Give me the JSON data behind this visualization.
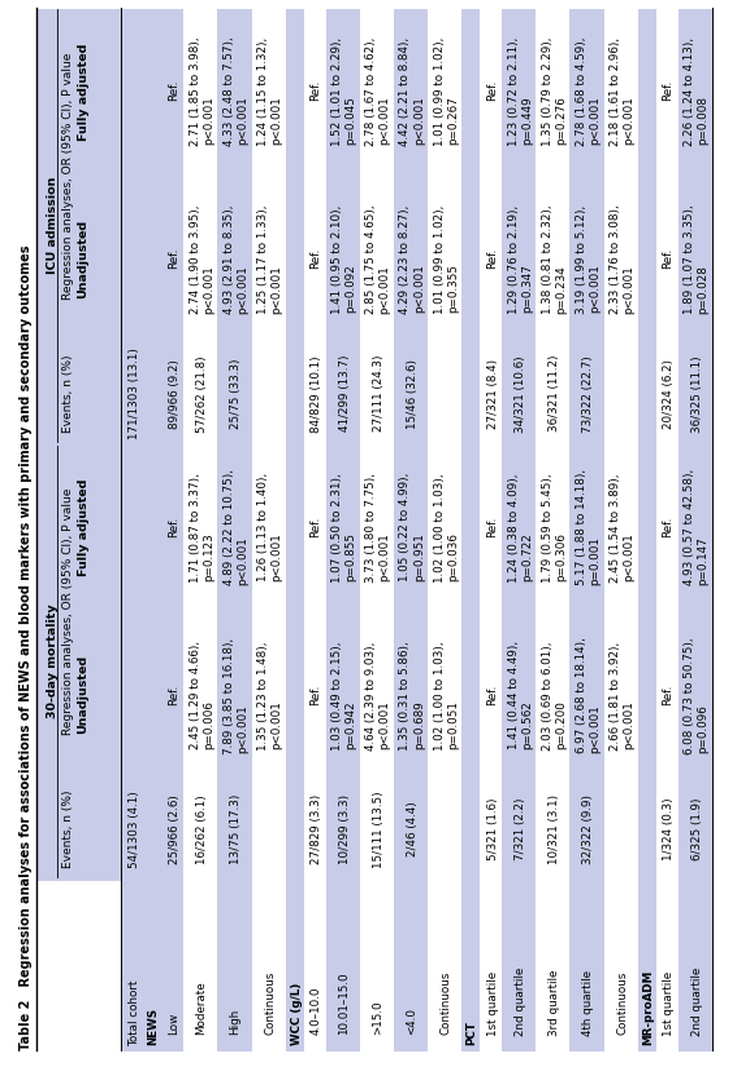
{
  "title": "Table 2   Regression analyses for associations of NEWS and blood markers with primary and secondary outcomes",
  "bg_stripe": "#c8cce8",
  "white": "#ffffff",
  "text_color": "#000000",
  "rows": [
    {
      "label": "Total cohort",
      "indent": 0,
      "bold": false,
      "is_section": false,
      "mort_events": "54/1303 (4.1)",
      "mort_unadj": "",
      "mort_adj": "",
      "icu_events": "171/1303 (13.1)",
      "icu_unadj": "",
      "icu_adj": ""
    },
    {
      "label": "NEWS",
      "indent": 0,
      "bold": true,
      "is_section": true,
      "mort_events": "",
      "mort_unadj": "",
      "mort_adj": "",
      "icu_events": "",
      "icu_unadj": "",
      "icu_adj": ""
    },
    {
      "label": "Low",
      "indent": 1,
      "bold": false,
      "is_section": false,
      "mort_events": "25/966 (2.6)",
      "mort_unadj": "Ref.",
      "mort_adj": "Ref.",
      "icu_events": "89/966 (9.2)",
      "icu_unadj": "Ref.",
      "icu_adj": "Ref."
    },
    {
      "label": "Moderate",
      "indent": 1,
      "bold": false,
      "is_section": false,
      "mort_events": "16/262 (6.1)",
      "mort_unadj": "2.45 (1.29 to 4.66),\np=0.006",
      "mort_adj": "1.71 (0.87 to 3.37),\np=0.123",
      "icu_events": "57/262 (21.8)",
      "icu_unadj": "2.74 (1.90 to 3.95),\np<0.001",
      "icu_adj": "2.71 (1.85 to 3.98),\np<0.001"
    },
    {
      "label": "High",
      "indent": 1,
      "bold": false,
      "is_section": false,
      "mort_events": "13/75 (17.3)",
      "mort_unadj": "7.89 (3.85 to 16.18),\np<0.001",
      "mort_adj": "4.89 (2.22 to 10.75),\np<0.001",
      "icu_events": "25/75 (33.3)",
      "icu_unadj": "4.93 (2.91 to 8.35),\np<0.001",
      "icu_adj": "4.33 (2.48 to 7.57),\np<0.001"
    },
    {
      "label": "Continuous",
      "indent": 1,
      "bold": false,
      "is_section": false,
      "mort_events": "",
      "mort_unadj": "1.35 (1.23 to 1.48),\np<0.001",
      "mort_adj": "1.26 (1.13 to 1.40),\np<0.001",
      "icu_events": "",
      "icu_unadj": "1.25 (1.17 to 1.33),\np<0.001",
      "icu_adj": "1.24 (1.15 to 1.32),\np<0.001"
    },
    {
      "label": "WCC (g/L)",
      "indent": 0,
      "bold": true,
      "is_section": true,
      "mort_events": "",
      "mort_unadj": "",
      "mort_adj": "",
      "icu_events": "",
      "icu_unadj": "",
      "icu_adj": ""
    },
    {
      "label": "4.0–10.0",
      "indent": 1,
      "bold": false,
      "is_section": false,
      "mort_events": "27/829 (3.3)",
      "mort_unadj": "Ref.",
      "mort_adj": "Ref.",
      "icu_events": "84/829 (10.1)",
      "icu_unadj": "Ref.",
      "icu_adj": "Ref."
    },
    {
      "label": "10.01–15.0",
      "indent": 1,
      "bold": false,
      "is_section": false,
      "mort_events": "10/299 (3.3)",
      "mort_unadj": "1.03 (0.49 to 2.15),\np=0.942",
      "mort_adj": "1.07 (0.50 to 2.31),\np=0.855",
      "icu_events": "41/299 (13.7)",
      "icu_unadj": "1.41 (0.95 to 2.10),\np=0.092",
      "icu_adj": "1.52 (1.01 to 2.29),\np=0.045"
    },
    {
      "label": ">15.0",
      "indent": 1,
      "bold": false,
      "is_section": false,
      "mort_events": "15/111 (13.5)",
      "mort_unadj": "4.64 (2.39 to 9.03),\np<0.001",
      "mort_adj": "3.73 (1.80 to 7.75),\np<0.001",
      "icu_events": "27/111 (24.3)",
      "icu_unadj": "2.85 (1.75 to 4.65),\np<0.001",
      "icu_adj": "2.78 (1.67 to 4.62),\np<0.001"
    },
    {
      "label": "<4.0",
      "indent": 1,
      "bold": false,
      "is_section": false,
      "mort_events": "2/46 (4.4)",
      "mort_unadj": "1.35 (0.31 to 5.86),\np=0.689",
      "mort_adj": "1.05 (0.22 to 4.99),\np=0.951",
      "icu_events": "15/46 (32.6)",
      "icu_unadj": "4.29 (2.23 to 8.27),\np<0.001",
      "icu_adj": "4.42 (2.21 to 8.84),\np<0.001"
    },
    {
      "label": "Continuous",
      "indent": 1,
      "bold": false,
      "is_section": false,
      "mort_events": "",
      "mort_unadj": "1.02 (1.00 to 1.03),\np=0.051",
      "mort_adj": "1.02 (1.00 to 1.03),\np=0.036",
      "icu_events": "",
      "icu_unadj": "1.01 (0.99 to 1.02),\np=0.355",
      "icu_adj": "1.01 (0.99 to 1.02),\np=0.267"
    },
    {
      "label": "PCT",
      "indent": 0,
      "bold": true,
      "is_section": true,
      "mort_events": "",
      "mort_unadj": "",
      "mort_adj": "",
      "icu_events": "",
      "icu_unadj": "",
      "icu_adj": ""
    },
    {
      "label": "1st quartile",
      "indent": 1,
      "bold": false,
      "is_section": false,
      "mort_events": "5/321 (1.6)",
      "mort_unadj": "Ref.",
      "mort_adj": "Ref.",
      "icu_events": "27/321 (8.4)",
      "icu_unadj": "Ref.",
      "icu_adj": "Ref."
    },
    {
      "label": "2nd quartile",
      "indent": 1,
      "bold": false,
      "is_section": false,
      "mort_events": "7/321 (2.2)",
      "mort_unadj": "1.41 (0.44 to 4.49),\np=0.562",
      "mort_adj": "1.24 (0.38 to 4.09),\np=0.722",
      "icu_events": "34/321 (10.6)",
      "icu_unadj": "1.29 (0.76 to 2.19),\np=0.347",
      "icu_adj": "1.23 (0.72 to 2.11),\np=0.449"
    },
    {
      "label": "3rd quartile",
      "indent": 1,
      "bold": false,
      "is_section": false,
      "mort_events": "10/321 (3.1)",
      "mort_unadj": "2.03 (0.69 to 6.01),\np=0.200",
      "mort_adj": "1.79 (0.59 to 5.45),\np=0.306",
      "icu_events": "36/321 (11.2)",
      "icu_unadj": "1.38 (0.81 to 2.32),\np=0.234",
      "icu_adj": "1.35 (0.79 to 2.29),\np=0.276"
    },
    {
      "label": "4th quartile",
      "indent": 1,
      "bold": false,
      "is_section": false,
      "mort_events": "32/322 (9.9)",
      "mort_unadj": "6.97 (2.68 to 18.14),\np<0.001",
      "mort_adj": "5.17 (1.88 to 14.18),\np=0.001",
      "icu_events": "73/322 (22.7)",
      "icu_unadj": "3.19 (1.99 to 5.12),\np<0.001",
      "icu_adj": "2.78 (1.68 to 4.59),\np<0.001"
    },
    {
      "label": "Continuous",
      "indent": 1,
      "bold": false,
      "is_section": false,
      "mort_events": "",
      "mort_unadj": "2.66 (1.81 to 3.92),\np<0.001",
      "mort_adj": "2.45 (1.54 to 3.89),\np<0.001",
      "icu_events": "",
      "icu_unadj": "2.33 (1.76 to 3.08),\np<0.001",
      "icu_adj": "2.18 (1.61 to 2.96),\np<0.001"
    },
    {
      "label": "MR-proADM",
      "indent": 0,
      "bold": true,
      "is_section": true,
      "mort_events": "",
      "mort_unadj": "",
      "mort_adj": "",
      "icu_events": "",
      "icu_unadj": "",
      "icu_adj": ""
    },
    {
      "label": "1st quartile",
      "indent": 1,
      "bold": false,
      "is_section": false,
      "mort_events": "1/324 (0.3)",
      "mort_unadj": "Ref.",
      "mort_adj": "Ref.",
      "icu_events": "20/324 (6.2)",
      "icu_unadj": "Ref.",
      "icu_adj": "Ref."
    },
    {
      "label": "2nd quartile",
      "indent": 1,
      "bold": false,
      "is_section": false,
      "mort_events": "6/325 (1.9)",
      "mort_unadj": "6.08 (0.73 to 50.75),\np=0.096",
      "mort_adj": "4.93 (0.57 to 42.58),\np=0.147",
      "icu_events": "36/325 (11.1)",
      "icu_unadj": "1.89 (1.07 to 3.35),\np=0.028",
      "icu_adj": "2.26 (1.24 to 4.13),\np=0.008"
    }
  ],
  "font_size_title": 7.0,
  "font_size_header": 6.8,
  "font_size_body": 6.3
}
